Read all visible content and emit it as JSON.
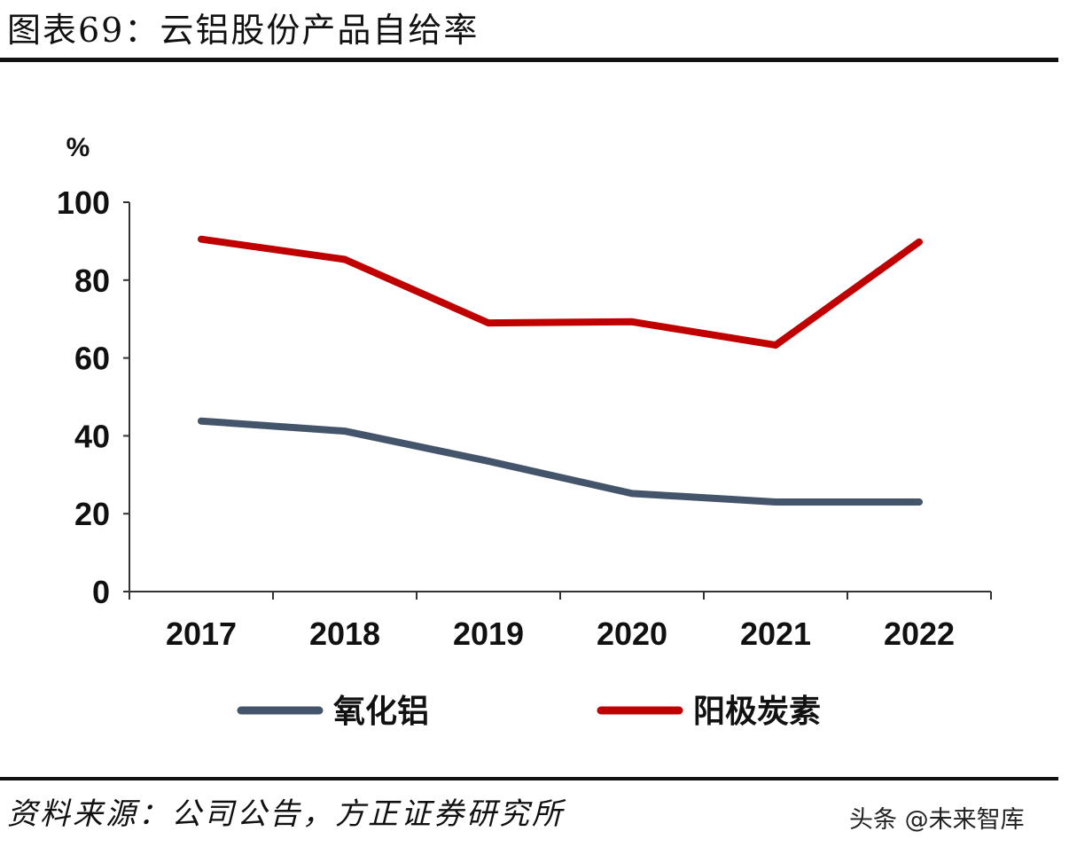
{
  "page": {
    "title": "图表69：云铝股份产品自给率",
    "source": "资料来源：公司公告，方正证券研究所",
    "watermark": "头条 @未来智库"
  },
  "chart_data": {
    "type": "line",
    "title": "图表69：云铝股份产品自给率",
    "ylabel": "%",
    "xlabel": "",
    "x": [
      "2017",
      "2018",
      "2019",
      "2020",
      "2021",
      "2022"
    ],
    "ylim": [
      0,
      100
    ],
    "yticks": [
      0,
      20,
      40,
      60,
      80,
      100
    ],
    "grid": false,
    "legend_position": "bottom",
    "series": [
      {
        "name": "氧化铝",
        "color": "#44546a",
        "values": [
          43.8,
          41.2,
          33.5,
          25.2,
          23.0,
          23.0
        ]
      },
      {
        "name": "阳极炭素",
        "color": "#c00000",
        "values": [
          90.5,
          85.3,
          69.0,
          69.3,
          63.3,
          89.8
        ]
      }
    ]
  }
}
